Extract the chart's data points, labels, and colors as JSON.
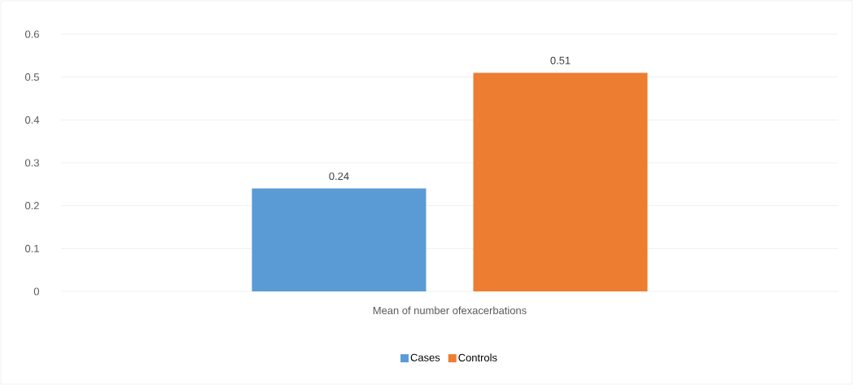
{
  "chart_data": {
    "type": "bar",
    "categories": [
      "Mean of number ofexacerbations"
    ],
    "series": [
      {
        "name": "Cases",
        "color": "#5b9bd5",
        "values": [
          0.24
        ]
      },
      {
        "name": "Controls",
        "color": "#ed7d31",
        "values": [
          0.51
        ]
      }
    ],
    "ylim": [
      0,
      0.6
    ],
    "yticks": [
      0,
      0.1,
      0.2,
      0.3,
      0.4,
      0.5,
      0.6
    ],
    "grid": "y",
    "legend": "bottom",
    "data_labels": true
  }
}
